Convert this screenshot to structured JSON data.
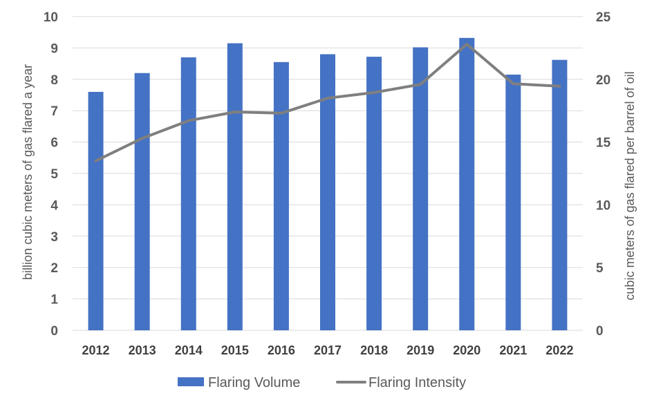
{
  "chart_data": {
    "type": "bar",
    "categories": [
      "2012",
      "2013",
      "2014",
      "2015",
      "2016",
      "2017",
      "2018",
      "2019",
      "2020",
      "2021",
      "2022"
    ],
    "series": [
      {
        "name": "Flaring Volume",
        "type": "bar",
        "axis": "left",
        "color": "#4472c4",
        "values": [
          7.6,
          8.2,
          8.7,
          9.15,
          8.55,
          8.8,
          8.72,
          9.02,
          9.32,
          8.15,
          8.62
        ]
      },
      {
        "name": "Flaring Intensity",
        "type": "line",
        "axis": "right",
        "color": "#7f7f7f",
        "values": [
          13.5,
          15.3,
          16.7,
          17.4,
          17.3,
          18.5,
          18.95,
          19.6,
          22.8,
          19.65,
          19.45
        ]
      }
    ],
    "ylabel": "billion cubic meters of gas flared a year",
    "ylabel_right": "cubic meters of gas flared per barrel of oil",
    "ylim": [
      0,
      10
    ],
    "yticks": [
      "0",
      "1",
      "2",
      "3",
      "4",
      "5",
      "6",
      "7",
      "8",
      "9",
      "10"
    ],
    "ylim_right": [
      0,
      25
    ],
    "yticks_right": [
      "0",
      "5",
      "10",
      "15",
      "20",
      "25"
    ],
    "grid": true,
    "legend": "bottom"
  }
}
